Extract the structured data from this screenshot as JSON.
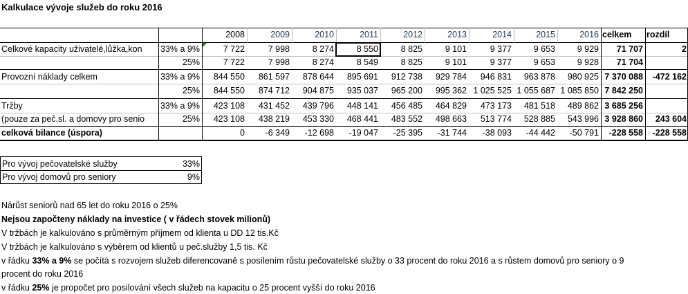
{
  "title": "Kalkulace vývoje služeb do roku 2016",
  "header": {
    "years": [
      "2008",
      "2009",
      "2010",
      "2011",
      "2012",
      "2013",
      "2014",
      "2015",
      "2016"
    ],
    "total": "celkem",
    "diff": "rozdíl"
  },
  "rows": [
    {
      "label": "Celkové kapacity uživatelé,lůžka,kon",
      "variant": "33% a 9%",
      "values": [
        "7 722",
        "7 998",
        "8 274",
        "8 550",
        "8 825",
        "9 101",
        "9 377",
        "9 653",
        "9 929"
      ],
      "total": "71 707",
      "diff": "2"
    },
    {
      "label": "",
      "variant": "25%",
      "values": [
        "7 722",
        "7 998",
        "8 274",
        "8 549",
        "8 825",
        "9 101",
        "9 377",
        "9 653",
        "9 928"
      ],
      "total": "71 704",
      "diff": ""
    },
    {
      "label": "Provozní náklady celkem",
      "variant": "33% a 9%",
      "values": [
        "844 550",
        "861 597",
        "878 644",
        "895 691",
        "912 738",
        "929 784",
        "946 831",
        "963 878",
        "980 925"
      ],
      "total": "7 370 088",
      "diff": "-472 162"
    },
    {
      "label": "",
      "variant": "25%",
      "values": [
        "844 550",
        "874 712",
        "904 875",
        "935 037",
        "965 200",
        "995 362",
        "1 025 525",
        "1 055 687",
        "1 085 850"
      ],
      "total": "7 842 250",
      "diff": ""
    },
    {
      "label": "Tržby",
      "variant": "33% a 9%",
      "values": [
        "423 108",
        "431 452",
        "439 796",
        "448 141",
        "456 485",
        "464 829",
        "473 173",
        "481 518",
        "489 862"
      ],
      "total": "3 685 256",
      "diff": ""
    },
    {
      "label": "(pouze za peč.sl. a domovy pro senio",
      "variant": "25%",
      "values": [
        "423 108",
        "438 219",
        "453 330",
        "468 441",
        "483 552",
        "498 663",
        "513 774",
        "528 885",
        "543 996"
      ],
      "total": "3 928 860",
      "diff": "243 604"
    },
    {
      "label": "celková bilance (úspora)",
      "variant": "",
      "values": [
        "0",
        "-6 349",
        "-12 698",
        "-19 047",
        "-25 395",
        "-31 744",
        "-38 093",
        "-44 442",
        "-50 791"
      ],
      "total": "-228 558",
      "diff": "-228 558"
    }
  ],
  "growth": {
    "row1_label": "Pro vývoj pečovatelské služby",
    "row1_value": "33%",
    "row2_label": "Pro vývoj domovů pro seniory",
    "row2_value": "9%"
  },
  "notes": {
    "n1": "Nárůst seniorů nad 65 let do roku 2016 o 25%",
    "n2": "Nejsou započteny náklady na investice ( v řádech stovek milionů)",
    "n3": "V tržbách je kalkulováno s průměrným příjmem od klienta u DD 12 tis.Kč",
    "n4": "V tržbách je kalkulováno s výběrem od klientů u peč.služby 1,5 tis. Kč",
    "n5_a": "v řádku ",
    "n5_b": "33% a 9%",
    "n5_c": " se počítá s rozvojem služeb diferencovaně s posílením růstu pečovatelské služby o 33 procent do roku 2016 a s růstem domovů pro seniory  o 9",
    "n5_d": "procent do roku 2016",
    "n6_a": "v řádku ",
    "n6_b": "25%",
    "n6_c": " je propočet pro posilování všech služeb na kapacitu o 25 procent vyšší do roku 2016"
  }
}
